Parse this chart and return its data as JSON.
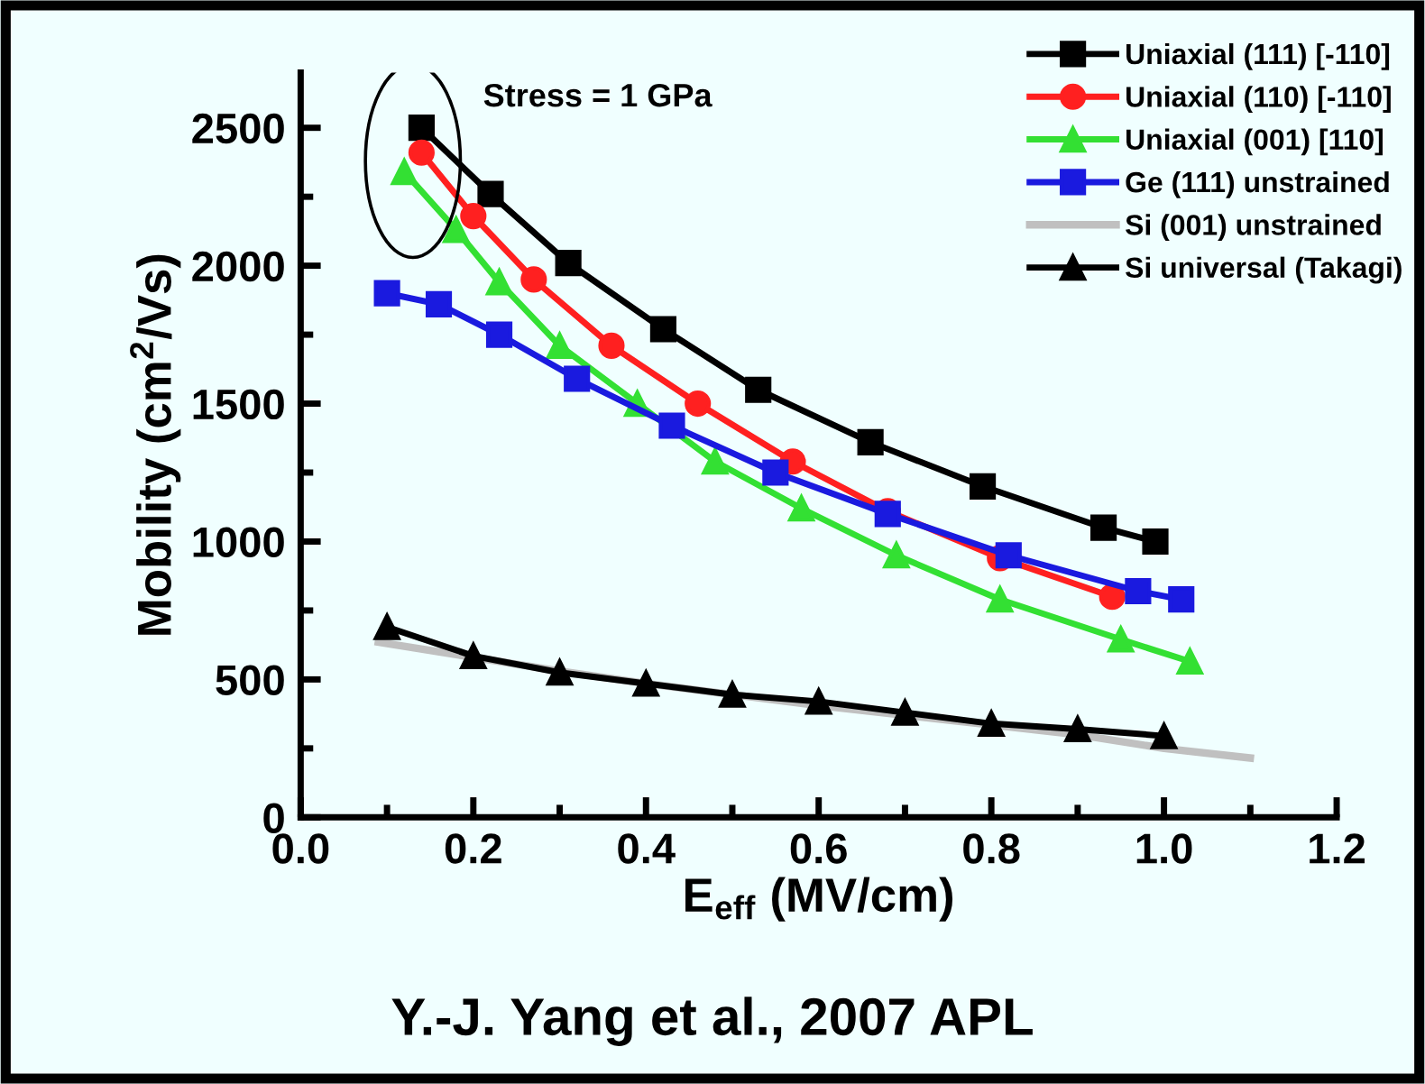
{
  "chart_data": {
    "type": "line",
    "xlabel": "E$_{eff}$ (MV/cm)",
    "ylabel": "Mobility (cm$^{2}$/Vs)",
    "xlim": [
      0,
      1.2
    ],
    "xticks": [
      {
        "value": 0,
        "label": "0.0"
      },
      0.2,
      0.4,
      0.6,
      0.8,
      {
        "value": 1,
        "label": "1.0"
      },
      1.2
    ],
    "ylim": [
      0,
      2700
    ],
    "yticks": [
      0,
      500,
      1000,
      1500,
      2000,
      2500
    ],
    "grid": false,
    "legend": "top right",
    "line_style": "solid",
    "annotations": [
      {
        "text": "Stress = 1 GPa",
        "x": 0.13,
        "y": 2450
      },
      "Y.-J. Yang et al., 2007 APL"
    ],
    "series": [
      {
        "name": "Uniaxial (111) [-110]",
        "color": "#000000",
        "marker": "square",
        "x": [
          0.14,
          0.22,
          0.31,
          0.42,
          0.53,
          0.66,
          0.79,
          0.93,
          0.99
        ],
        "values": [
          2500,
          2260,
          2010,
          1770,
          1550,
          1360,
          1200,
          1050,
          1000
        ]
      },
      {
        "name": "Uniaxial (110) [-110]",
        "color": "#ff2020",
        "marker": "circle",
        "x": [
          0.14,
          0.2,
          0.27,
          0.36,
          0.46,
          0.57,
          0.68,
          0.81,
          0.94
        ],
        "values": [
          2410,
          2180,
          1950,
          1710,
          1500,
          1290,
          1110,
          940,
          800
        ]
      },
      {
        "name": "Uniaxial (001) [110]",
        "color": "#33e033",
        "marker": "triangle",
        "x": [
          0.12,
          0.18,
          0.23,
          0.3,
          0.39,
          0.48,
          0.58,
          0.69,
          0.81,
          0.95,
          1.03
        ],
        "values": [
          2340,
          2130,
          1940,
          1710,
          1500,
          1290,
          1120,
          950,
          790,
          645,
          565
        ]
      },
      {
        "name": "Ge (111) unstrained",
        "color": "#1a1adf",
        "marker": "square",
        "x": [
          0.1,
          0.16,
          0.23,
          0.32,
          0.43,
          0.55,
          0.68,
          0.82,
          0.97,
          1.02
        ],
        "values": [
          1900,
          1860,
          1750,
          1590,
          1420,
          1250,
          1100,
          950,
          820,
          790
        ]
      },
      {
        "name": "Si (001) unstrained",
        "color": "#c0c0c0",
        "marker": "none",
        "x": [
          0.09,
          0.2,
          0.3,
          0.4,
          0.5,
          0.6,
          0.7,
          0.8,
          0.9,
          1.0,
          1.1
        ],
        "values": [
          635,
          580,
          530,
          485,
          445,
          405,
          370,
          335,
          300,
          250,
          215
        ]
      },
      {
        "name": "Si universal (Takagi)",
        "color": "#000000",
        "marker": "triangle",
        "x": [
          0.1,
          0.2,
          0.3,
          0.4,
          0.5,
          0.6,
          0.7,
          0.8,
          0.9,
          1.0
        ],
        "values": [
          690,
          585,
          525,
          485,
          445,
          420,
          380,
          340,
          320,
          295
        ]
      }
    ]
  }
}
